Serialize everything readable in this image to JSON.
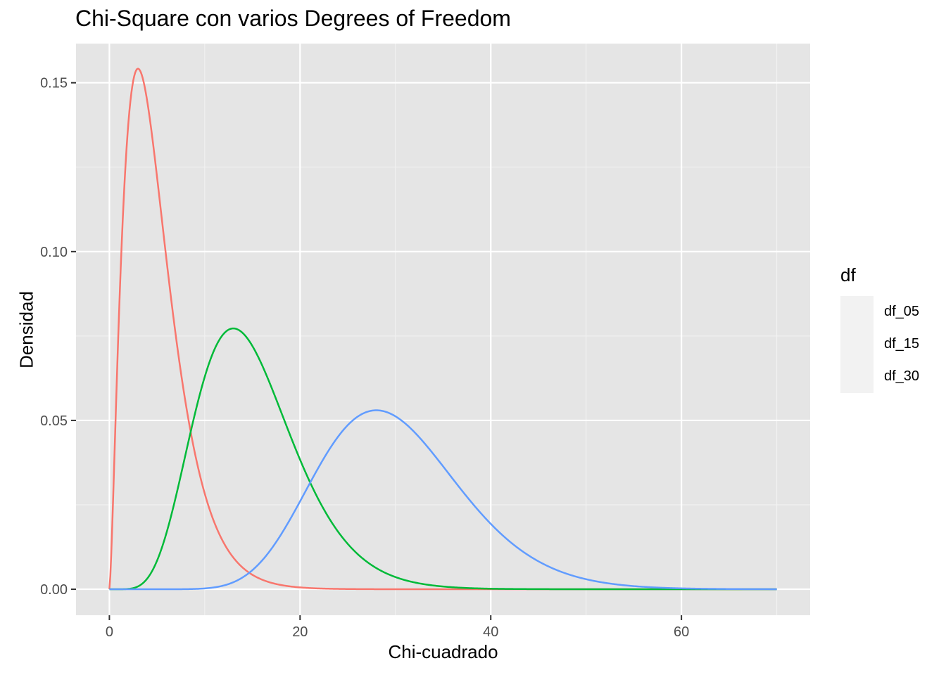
{
  "chart_data": {
    "type": "line",
    "title": "Chi-Square con varios Degrees of Freedom",
    "xlabel": "Chi-cuadrado",
    "ylabel": "Densidad",
    "xlim": [
      -3.5,
      73.5
    ],
    "ylim": [
      -0.0077,
      0.1616
    ],
    "x_ticks": [
      0,
      20,
      40,
      60
    ],
    "x_tick_labels": [
      "0",
      "20",
      "40",
      "60"
    ],
    "y_ticks": [
      0.0,
      0.05,
      0.1,
      0.15
    ],
    "y_tick_labels": [
      "0.00",
      "0.05",
      "0.10",
      "0.15"
    ],
    "x_range": [
      0,
      70
    ],
    "grid": true,
    "legend": {
      "title": "df",
      "position": "right"
    },
    "series": [
      {
        "name": "df_05",
        "df": 5,
        "color": "#F8766D"
      },
      {
        "name": "df_15",
        "df": 15,
        "color": "#00BA38"
      },
      {
        "name": "df_30",
        "df": 30,
        "color": "#619CFF"
      }
    ]
  }
}
